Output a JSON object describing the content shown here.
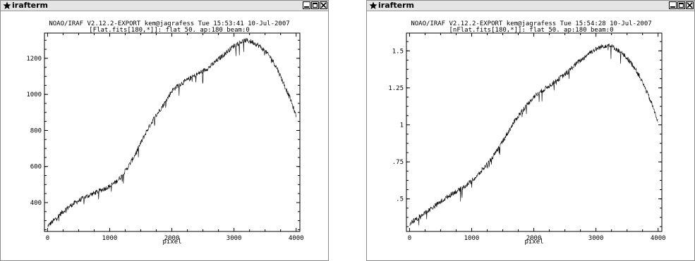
{
  "windows": [
    {
      "title": "irafterm",
      "header": {
        "line1": "NOAO/IRAF V2.12.2-EXPORT kem@jagrafess Tue 15:53:41 10-Jul-2007",
        "line2": "[Flat.fits[180,*]]: flat 50. ap:180 beam:0"
      },
      "chart_data": {
        "type": "line",
        "title": "NOAO/IRAF V2.12.2-EXPORT kem@jagrafess Tue 15:53:41 10-Jul-2007",
        "subtitle": "[Flat.fits[180,*]]: flat 50. ap:180 beam:0",
        "xlabel": "pixel",
        "ylabel": "",
        "xlim": [
          -50,
          4060
        ],
        "ylim": [
          240,
          1340
        ],
        "xticks": [
          0,
          1000,
          2000,
          3000,
          4000
        ],
        "xtick_labels": [
          "0",
          "1000",
          "2000",
          "3000",
          "4000"
        ],
        "yticks": [
          400,
          600,
          800,
          1000,
          1200
        ],
        "ytick_labels": [
          "400",
          "600",
          "800",
          "1000",
          "1200"
        ],
        "grid": false,
        "series": [
          {
            "x": [
              1,
              100,
              200,
              300,
              400,
              500,
              600,
              700,
              800,
              900,
              1000,
              1100,
              1200,
              1300,
              1400,
              1500,
              1600,
              1700,
              1800,
              1900,
              2000,
              2100,
              2200,
              2300,
              2400,
              2500,
              2600,
              2700,
              2800,
              2900,
              3000,
              3100,
              3200,
              3300,
              3400,
              3500,
              3600,
              3700,
              3800,
              3900,
              4000
            ],
            "y": [
              270,
              300,
              335,
              365,
              390,
              410,
              430,
              445,
              460,
              475,
              490,
              515,
              550,
              600,
              660,
              730,
              800,
              860,
              910,
              960,
              1020,
              1050,
              1070,
              1090,
              1110,
              1130,
              1150,
              1180,
              1210,
              1240,
              1270,
              1290,
              1300,
              1290,
              1270,
              1240,
              1200,
              1140,
              1060,
              980,
              880
            ]
          }
        ]
      }
    },
    {
      "title": "irafterm",
      "header": {
        "line1": "NOAO/IRAF V2.12.2-EXPORT kem@jagrafess Tue 15:54:28 10-Jul-2007",
        "line2": "[nFlat.fits[180,*]]: flat 50. ap:180 beam:0"
      },
      "chart_data": {
        "type": "line",
        "title": "NOAO/IRAF V2.12.2-EXPORT kem@jagrafess Tue 15:54:28 10-Jul-2007",
        "subtitle": "[nFlat.fits[180,*]]: flat 50. ap:180 beam:0",
        "xlabel": "pixel",
        "ylabel": "",
        "xlim": [
          -50,
          4060
        ],
        "ylim": [
          0.28,
          1.62
        ],
        "xticks": [
          0,
          1000,
          2000,
          3000,
          4000
        ],
        "xtick_labels": [
          "0",
          "1000",
          "2000",
          "3000",
          "4000"
        ],
        "yticks": [
          0.5,
          0.75,
          1.0,
          1.25,
          1.5
        ],
        "ytick_labels": [
          ".5",
          ".75",
          "1",
          "1.25",
          "1.5"
        ],
        "grid": false,
        "series": [
          {
            "x": [
              1,
              100,
              200,
              300,
              400,
              500,
              600,
              700,
              800,
              900,
              1000,
              1100,
              1200,
              1300,
              1400,
              1500,
              1600,
              1700,
              1800,
              1900,
              2000,
              2100,
              2200,
              2300,
              2400,
              2500,
              2600,
              2700,
              2800,
              2900,
              3000,
              3100,
              3200,
              3300,
              3400,
              3500,
              3600,
              3700,
              3800,
              3900,
              4000
            ],
            "y": [
              0.33,
              0.36,
              0.39,
              0.42,
              0.45,
              0.48,
              0.51,
              0.54,
              0.56,
              0.59,
              0.62,
              0.66,
              0.71,
              0.76,
              0.82,
              0.89,
              0.96,
              1.03,
              1.09,
              1.14,
              1.19,
              1.22,
              1.25,
              1.28,
              1.31,
              1.34,
              1.38,
              1.42,
              1.45,
              1.49,
              1.51,
              1.53,
              1.54,
              1.52,
              1.49,
              1.45,
              1.4,
              1.33,
              1.24,
              1.14,
              1.02
            ]
          }
        ]
      }
    }
  ]
}
